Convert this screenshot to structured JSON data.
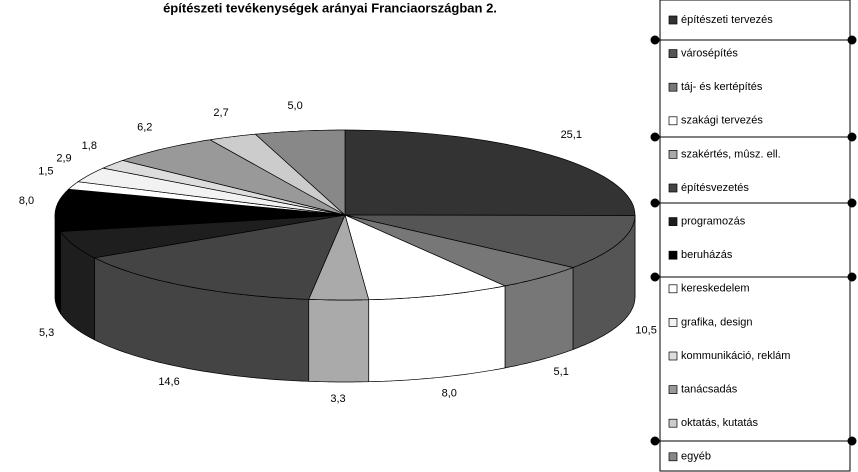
{
  "chart_data": {
    "type": "pie3d",
    "title": "építészeti tevékenységek arányai Franciaországban 2.",
    "categories": [
      "építészeti tervezés",
      "városépítés",
      "táj- és kertépítés",
      "szakági tervezés",
      "szakértés, mûsz. ell.",
      "építésvezetés",
      "programozás",
      "beruházás",
      "kereskedelem",
      "grafika, design",
      "kommunikáció, reklám",
      "tanácsadás",
      "oktatás, kutatás",
      "egyéb"
    ],
    "values": [
      25.1,
      10.5,
      5.1,
      8.0,
      3.3,
      14.6,
      5.3,
      8.0,
      1.5,
      2.9,
      1.8,
      6.2,
      2.7,
      5.0
    ],
    "value_labels": [
      "25,1",
      "10,5",
      "5,1",
      "8,0",
      "3,3",
      "14,6",
      "5,3",
      "8,0",
      "1,5",
      "2,9",
      "1,8",
      "6,2",
      "2,7",
      "5,0"
    ],
    "colors": [
      "#333333",
      "#555555",
      "#777777",
      "#ffffff",
      "#aaaaaa",
      "#444444",
      "#1e1e1e",
      "#000000",
      "#ffffff",
      "#f2f2f2",
      "#dddddd",
      "#999999",
      "#cccccc",
      "#888888"
    ]
  }
}
